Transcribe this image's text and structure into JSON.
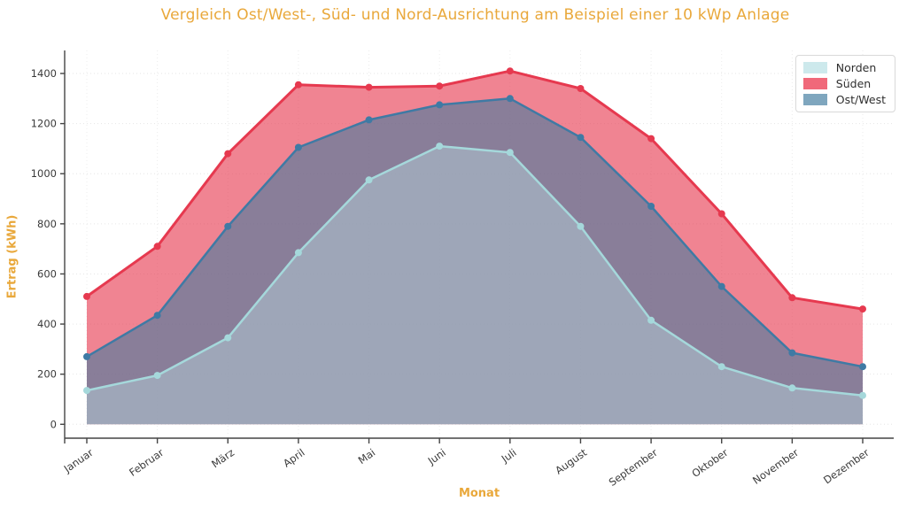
{
  "title": "Vergleich Ost/West-, Süd- und Nord-Ausrichtung am Beispiel einer 10 kWp Anlage",
  "colors": {
    "title": "#e9a83b",
    "axis_label": "#e9a83b",
    "tick_text": "#3a3a3a",
    "spine": "#444444",
    "grid_h": "#e6e6e6",
    "grid_v": "#ececec",
    "legend_border": "#d9d9d9",
    "legend_background": "#ffffff"
  },
  "legend": {
    "position": "top-right"
  },
  "chart_data": {
    "type": "area",
    "title": "Vergleich Ost/West-, Süd- und Nord-Ausrichtung am Beispiel einer 10 kWp Anlage",
    "xlabel": "Monat",
    "ylabel": "Ertrag (kWh)",
    "x": [
      "Januar",
      "Februar",
      "März",
      "April",
      "Mai",
      "Juni",
      "Juli",
      "August",
      "September",
      "Oktober",
      "November",
      "Dezember"
    ],
    "ylim": [
      0,
      1400
    ],
    "ytick_step": 200,
    "yticks": [
      0,
      200,
      400,
      600,
      800,
      1000,
      1200,
      1400
    ],
    "grid": true,
    "legend_position": "top-right",
    "draw_order": [
      1,
      2,
      0
    ],
    "series": [
      {
        "name": "Norden",
        "line_color": "#a5d8db",
        "fill_color": "#bfe4e7",
        "fill_opacity": 0.4,
        "swatch_color": "#cde9ec",
        "values": [
          135,
          195,
          345,
          685,
          975,
          1110,
          1085,
          790,
          415,
          230,
          145,
          115
        ]
      },
      {
        "name": "Süden",
        "line_color": "#e6394f",
        "fill_color": "#e6394f",
        "fill_opacity": 0.62,
        "swatch_color": "#f0697a",
        "values": [
          510,
          710,
          1080,
          1355,
          1345,
          1350,
          1410,
          1340,
          1140,
          840,
          505,
          460
        ]
      },
      {
        "name": "Ost/West",
        "line_color": "#3f7aa4",
        "fill_color": "#45799f",
        "fill_opacity": 0.6,
        "swatch_color": "#7fa6be",
        "values": [
          270,
          435,
          790,
          1105,
          1215,
          1275,
          1300,
          1145,
          870,
          550,
          285,
          230
        ]
      }
    ]
  }
}
